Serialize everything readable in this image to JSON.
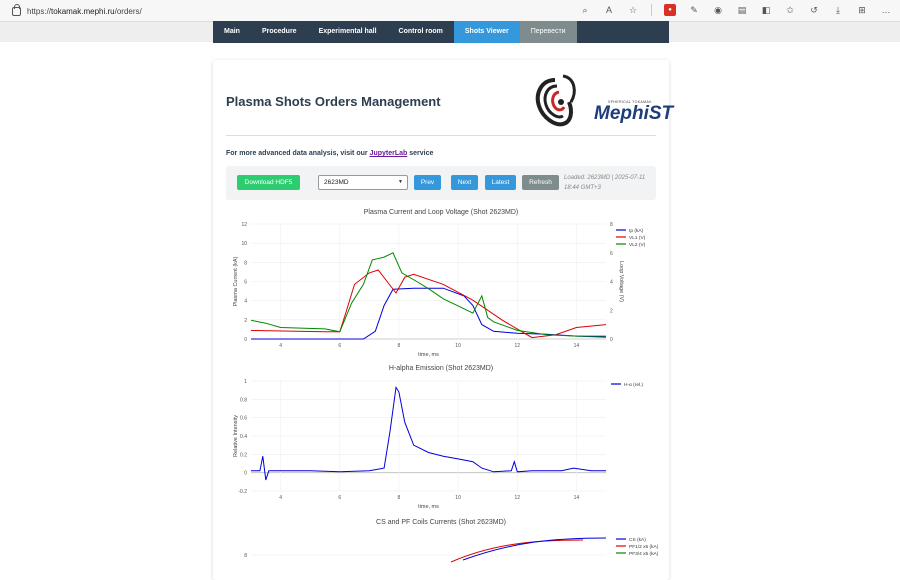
{
  "browser": {
    "url_scheme": "https://",
    "url_host": "tokamak.mephi.ru",
    "url_path": "/orders/"
  },
  "nav": {
    "items": [
      "Main",
      "Procedure",
      "Experimental hall",
      "Control room",
      "Shots Viewer"
    ],
    "active": "Shots Viewer",
    "translate_label": "Перевести"
  },
  "header": {
    "title": "Plasma Shots Orders Management",
    "logo_caption": "SPHERICAL TOKAMAK",
    "logo_name": "MephiST"
  },
  "jupyter": {
    "prefix": "For more advanced data analysis, visit our ",
    "link_text": "JupyterLab",
    "suffix": " service"
  },
  "toolbar": {
    "download_label": "Download HDF5",
    "shot_selected": "2623MD",
    "prev_label": "Prev",
    "next_label": "Next",
    "latest_label": "Latest",
    "refresh_label": "Refresh",
    "loaded_text": "Loaded: 2623MD | 2025-07-11 18:44 GMT+3"
  },
  "colors": {
    "nav_bg": "#2c3e50",
    "nav_active": "#3498db",
    "download": "#2ecc71",
    "primary": "#3498db",
    "refresh": "#7f8c8d",
    "ip": "#0000dd",
    "vl1": "#dd0000",
    "vl2": "#008800"
  },
  "chart_data": [
    {
      "type": "line",
      "title": "Plasma Current and Loop Voltage (Shot 2623MD)",
      "xlabel": "time, ms",
      "ylabel": "Plasma Current (kA)",
      "y2label": "Loop Voltage (V)",
      "xlim": [
        3,
        15
      ],
      "ylim": [
        0,
        12
      ],
      "y2lim": [
        0,
        8
      ],
      "xticks": [
        4,
        6,
        8,
        10,
        12,
        14
      ],
      "yticks": [
        0,
        2,
        4,
        6,
        8,
        10,
        12
      ],
      "y2ticks": [
        0,
        2,
        4,
        6,
        8
      ],
      "legend": "top-right",
      "series": [
        {
          "name": "Ip (kA)",
          "axis": "y",
          "color": "#0000dd",
          "x": [
            3,
            6.8,
            7.2,
            7.5,
            7.8,
            8.5,
            9.5,
            10.2,
            10.5,
            10.8,
            11.2,
            12,
            13,
            14,
            15
          ],
          "y": [
            0,
            0,
            0.8,
            3.5,
            5.2,
            5.3,
            5.3,
            4.5,
            3.5,
            1.5,
            0.8,
            0.6,
            0.5,
            0.3,
            0.2
          ]
        },
        {
          "name": "VL1 (V)",
          "axis": "y2",
          "color": "#dd0000",
          "x": [
            3,
            5.5,
            6,
            6.2,
            6.5,
            7,
            7.3,
            7.6,
            7.9,
            8.2,
            8.5,
            9.5,
            10.5,
            11.5,
            12.5,
            13.3,
            14,
            15
          ],
          "y": [
            0.6,
            0.5,
            0.5,
            1.8,
            3.8,
            4.6,
            4.8,
            4.0,
            3.2,
            4.3,
            4.5,
            3.8,
            2.7,
            1.3,
            0.1,
            0.3,
            0.8,
            1.0
          ]
        },
        {
          "name": "VL2 (V)",
          "axis": "y2",
          "color": "#008800",
          "x": [
            3,
            3.5,
            4,
            5.5,
            6,
            6.4,
            6.8,
            7.1,
            7.5,
            7.8,
            8.1,
            8.6,
            9,
            9.5,
            10,
            10.5,
            10.8,
            11,
            11.2,
            12,
            13,
            14,
            15
          ],
          "y": [
            1.3,
            1.1,
            0.8,
            0.7,
            0.5,
            2.5,
            3.8,
            5.5,
            5.7,
            6.0,
            4.6,
            4.0,
            3.5,
            2.8,
            2.3,
            1.8,
            3.0,
            1.5,
            1.2,
            0.6,
            0.3,
            0.2,
            0.2
          ]
        }
      ]
    },
    {
      "type": "line",
      "title": "H-alpha Emission (Shot 2623MD)",
      "xlabel": "time, ms",
      "ylabel": "Relative Intensity",
      "xlim": [
        3,
        15
      ],
      "ylim": [
        -0.2,
        1
      ],
      "xticks": [
        4,
        6,
        8,
        10,
        12,
        14
      ],
      "yticks": [
        -0.2,
        0,
        0.2,
        0.4,
        0.6,
        0.8,
        1
      ],
      "legend": "top-right",
      "series": [
        {
          "name": "H-α (rel.)",
          "color": "#0000dd",
          "x": [
            3,
            3.3,
            3.4,
            3.5,
            3.6,
            4,
            5,
            6,
            7,
            7.5,
            7.7,
            7.9,
            8.0,
            8.2,
            8.5,
            9,
            9.5,
            10,
            10.5,
            10.8,
            11.2,
            11.8,
            11.9,
            12.0,
            12.5,
            13,
            13.5,
            13.9,
            14.5,
            15
          ],
          "y": [
            0.02,
            0.02,
            0.18,
            -0.08,
            0.02,
            0.02,
            0.02,
            0.01,
            0.02,
            0.05,
            0.45,
            0.93,
            0.88,
            0.55,
            0.3,
            0.22,
            0.18,
            0.15,
            0.12,
            0.05,
            0.01,
            0.02,
            0.12,
            0.01,
            0.02,
            0.02,
            0.02,
            0.05,
            0.02,
            0.02
          ]
        }
      ]
    },
    {
      "type": "line",
      "title": "CS and PF Coils Currents (Shot 2623MD)",
      "legend": "top-right",
      "yticks": [
        8
      ],
      "series": [
        {
          "name": "CS (kA)",
          "color": "#0000dd"
        },
        {
          "name": "PF1/2 x5 (kA)",
          "color": "#dd0000"
        },
        {
          "name": "PF3/4 x5 (kA)",
          "color": "#008800"
        }
      ]
    }
  ]
}
